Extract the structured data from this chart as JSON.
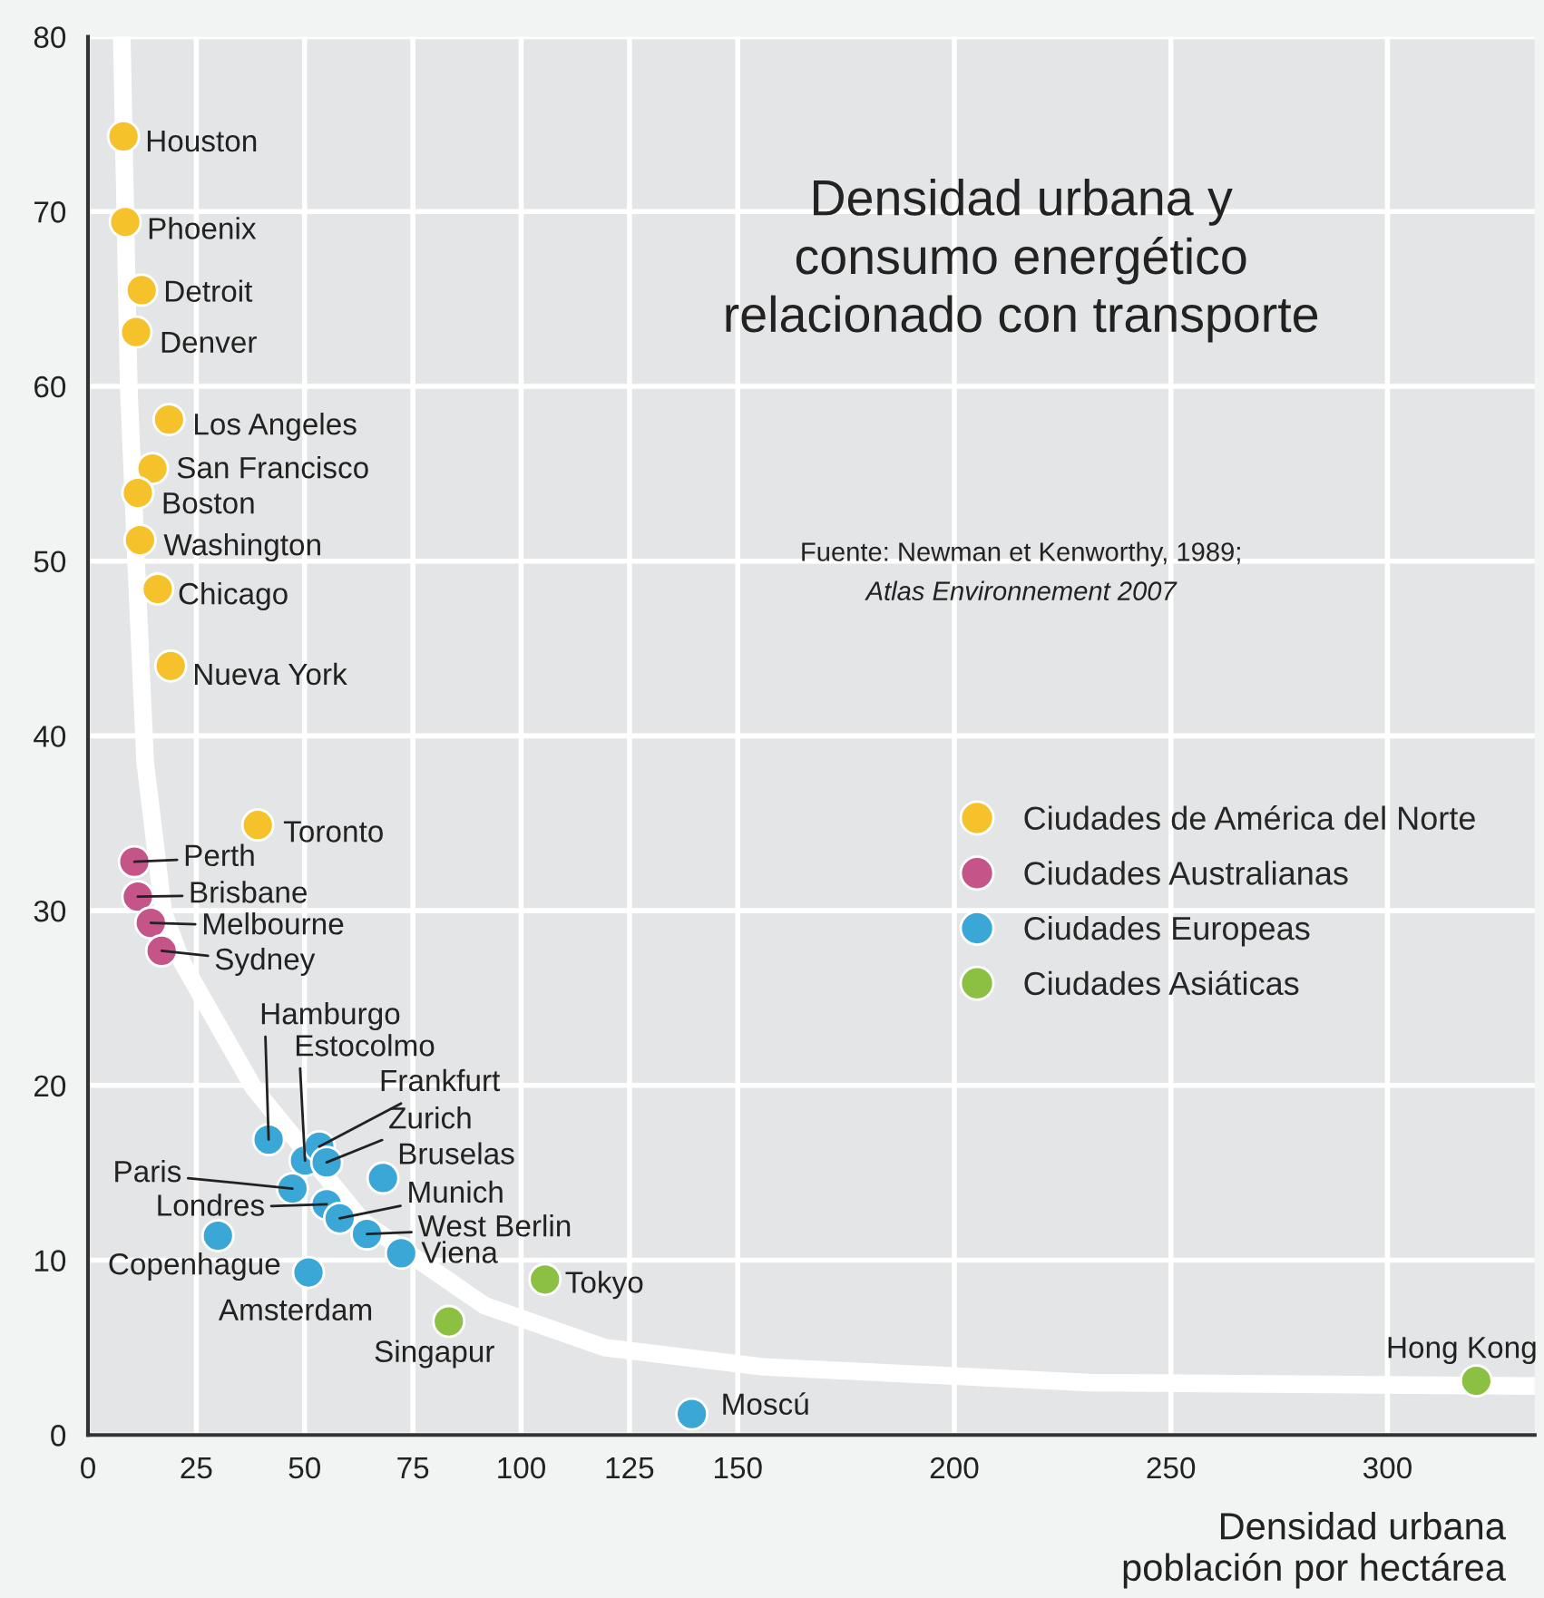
{
  "chart_data": {
    "type": "scatter",
    "title": "Densidad urbana y\nconsumo energético\nrelacionado con transporte",
    "xlabel": "Densidad urbana\npoblación por hectárea",
    "xlim": [
      0,
      334
    ],
    "xticks": [
      0,
      25,
      50,
      75,
      100,
      125,
      150,
      200,
      250,
      300
    ],
    "ylim": [
      0,
      80
    ],
    "yticks": [
      0,
      10,
      20,
      30,
      40,
      50,
      60,
      70,
      80
    ],
    "grid": true,
    "legend": "right",
    "series": [
      {
        "type": "line",
        "marker": "none",
        "color": "#ffffff",
        "x": [
          7.8,
          9.4,
          11.1,
          13.2,
          17.4,
          21.6,
          38.4,
          63.5,
          91.6,
          119.3,
          155.8,
          231,
          334
        ],
        "values": [
          80,
          60,
          50,
          38.5,
          29.9,
          27.1,
          19.8,
          12.2,
          7.4,
          5.0,
          3.9,
          3.0,
          2.8
        ]
      },
      {
        "name": "Ciudades de América del Norte",
        "marker": "circle",
        "color": "#f5c22b",
        "x": [
          8.2,
          8.6,
          12.4,
          11.1,
          18.7,
          14.9,
          11.5,
          12.0,
          16.1,
          19.1,
          39.2
        ],
        "values": [
          74.3,
          69.4,
          65.5,
          63.1,
          58.1,
          55.3,
          53.9,
          51.2,
          48.4,
          44.0,
          34.9
        ]
      },
      {
        "name": "Ciudades Australianas",
        "marker": "circle",
        "color": "#c55489",
        "x": [
          10.7,
          11.5,
          14.5,
          17.0
        ],
        "values": [
          32.8,
          30.8,
          29.3,
          27.7
        ]
      },
      {
        "name": "Ciudades Europeas",
        "marker": "circle",
        "color": "#3ba7d6",
        "x": [
          41.7,
          50.1,
          53.4,
          55.1,
          68.1,
          47.2,
          55.1,
          58.1,
          64.4,
          72.3,
          30.0,
          50.9,
          139.4
        ],
        "values": [
          16.9,
          15.7,
          16.5,
          15.6,
          14.7,
          14.1,
          13.2,
          12.4,
          11.5,
          10.4,
          11.4,
          9.3,
          1.2
        ]
      },
      {
        "name": "Ciudades Asiáticas",
        "marker": "circle",
        "color": "#8cc043",
        "x": [
          105.5,
          83.3,
          320.5
        ],
        "values": [
          8.9,
          6.5,
          3.1
        ]
      }
    ],
    "annotations": [
      "Fuente: Newman et Kenworthy, 1989;",
      "Atlas Environnement 2007",
      {
        "text": "Houston",
        "x": 8.2,
        "y": 74.3
      },
      {
        "text": "Phoenix",
        "x": 8.6,
        "y": 69.4
      },
      {
        "text": "Detroit",
        "x": 12.4,
        "y": 65.5
      },
      {
        "text": "Denver",
        "x": 11.1,
        "y": 63.1
      },
      {
        "text": "Los Angeles",
        "x": 18.7,
        "y": 58.1
      },
      {
        "text": "San Francisco",
        "x": 14.9,
        "y": 55.3
      },
      {
        "text": "Boston",
        "x": 11.5,
        "y": 53.9
      },
      {
        "text": "Washington",
        "x": 12.0,
        "y": 51.2
      },
      {
        "text": "Chicago",
        "x": 16.1,
        "y": 48.4
      },
      {
        "text": "Nueva York",
        "x": 19.1,
        "y": 44.0
      },
      {
        "text": "Toronto",
        "x": 39.2,
        "y": 34.9
      },
      {
        "text": "Perth",
        "x": 10.7,
        "y": 32.8
      },
      {
        "text": "Brisbane",
        "x": 11.5,
        "y": 30.8
      },
      {
        "text": "Melbourne",
        "x": 14.5,
        "y": 29.3
      },
      {
        "text": "Sydney",
        "x": 17.0,
        "y": 27.7
      },
      {
        "text": "Hamburgo",
        "x": 41.7,
        "y": 16.9
      },
      {
        "text": "Estocolmo",
        "x": 50.1,
        "y": 15.7
      },
      {
        "text": "Frankfurt",
        "x": 53.4,
        "y": 16.5
      },
      {
        "text": "Zurich",
        "x": 55.1,
        "y": 15.6
      },
      {
        "text": "Bruselas",
        "x": 68.1,
        "y": 14.7
      },
      {
        "text": "Paris",
        "x": 47.2,
        "y": 14.1
      },
      {
        "text": "Londres",
        "x": 55.1,
        "y": 13.2
      },
      {
        "text": "Munich",
        "x": 58.1,
        "y": 12.4
      },
      {
        "text": "West Berlin",
        "x": 64.4,
        "y": 11.5
      },
      {
        "text": "Viena",
        "x": 72.3,
        "y": 10.4
      },
      {
        "text": "Copenhague",
        "x": 30.0,
        "y": 11.4
      },
      {
        "text": "Amsterdam",
        "x": 50.9,
        "y": 9.3
      },
      {
        "text": "Tokyo",
        "x": 105.5,
        "y": 8.9
      },
      {
        "text": "Singapur",
        "x": 83.3,
        "y": 6.5
      },
      {
        "text": "Moscú",
        "x": 139.4,
        "y": 1.2
      },
      {
        "text": "Hong Kong",
        "x": 320.5,
        "y": 3.1
      }
    ]
  }
}
